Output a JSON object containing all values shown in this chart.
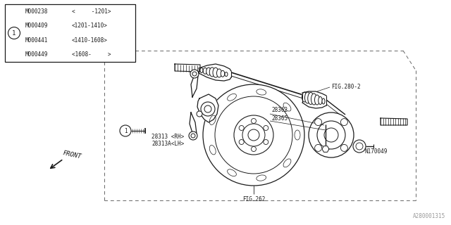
{
  "bg_color": "#ffffff",
  "lc": "#1a1a1a",
  "gray": "#888888",
  "table_rows": [
    [
      "M000238",
      "<     -1201>"
    ],
    [
      "M000409",
      "<1201-1410>"
    ],
    [
      "M000441",
      "<1410-1608>"
    ],
    [
      "M000449",
      "<1608-     >"
    ]
  ],
  "labels": {
    "FIG280_2": "FIG.280-2",
    "FIG262": "FIG.262",
    "p28313": "28313 <RH>",
    "p28313A": "28313A<LH>",
    "p28362": "28362",
    "p28365": "28365",
    "pN170049": "N170049",
    "front": "FRONT"
  },
  "watermark": "A280001315",
  "fs": 6.5,
  "sfs": 5.5
}
